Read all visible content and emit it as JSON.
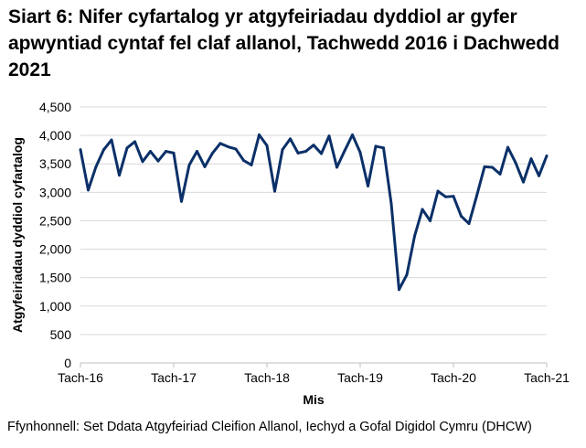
{
  "chart_data": {
    "type": "line",
    "title": "Siart 6: Nifer cyfartalog yr atgyfeiriadau dyddiol ar gyfer apwyntiad cyntaf fel claf allanol, Tachwedd 2016 i Dachwedd 2021",
    "xlabel": "Mis",
    "ylabel": "Atgyfeiriadau dyddiol cyfartalog",
    "ylim": [
      0,
      4500
    ],
    "yticks": [
      "0",
      "500",
      "1,000",
      "1,500",
      "2,000",
      "2,500",
      "3,000",
      "3,500",
      "4,000",
      "4,500"
    ],
    "xtick_labels": [
      "Tach-16",
      "Tach-17",
      "Tach-18",
      "Tach-19",
      "Tach-20",
      "Tach-21"
    ],
    "grid": true,
    "line_color": "#0b3068",
    "values": [
      3750,
      3040,
      3450,
      3750,
      3920,
      3300,
      3780,
      3890,
      3540,
      3720,
      3550,
      3720,
      3690,
      2840,
      3480,
      3720,
      3450,
      3690,
      3860,
      3800,
      3760,
      3560,
      3480,
      4010,
      3820,
      3020,
      3750,
      3940,
      3690,
      3720,
      3830,
      3680,
      3990,
      3440,
      3730,
      4010,
      3700,
      3110,
      3810,
      3780,
      2800,
      1290,
      1550,
      2230,
      2700,
      2500,
      3020,
      2920,
      2930,
      2580,
      2450,
      2940,
      3450,
      3440,
      3320,
      3790,
      3520,
      3180,
      3590,
      3290,
      3640
    ]
  },
  "source": "Ffynhonnell: Set Ddata Atgyfeiriad Cleifion Allanol, Iechyd a Gofal Digidol Cymru (DHCW)"
}
